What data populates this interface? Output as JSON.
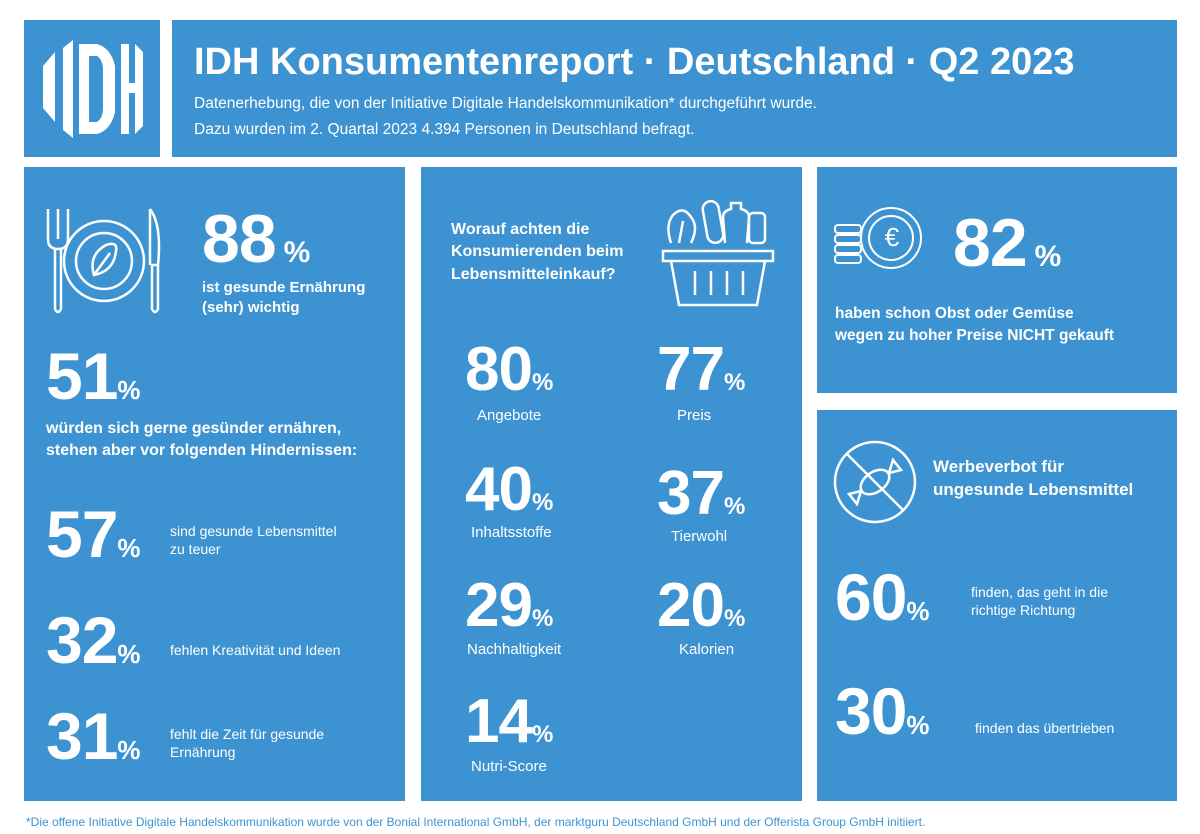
{
  "header": {
    "logo_text": "IDH",
    "title": "IDH Konsumentenreport · Deutschland · Q2 2023",
    "subtitle_line1": "Datenerhebung, die von der Initiative Digitale Handelskommunikation* durchgeführt wurde.",
    "subtitle_line2": "Dazu wurden im 2. Quartal 2023 4.394 Personen in Deutschland befragt."
  },
  "left": {
    "health": {
      "value": "88",
      "unit": "%",
      "text_line1": "ist gesunde Ernährung",
      "text_line2": "(sehr) wichtig"
    },
    "wish": {
      "value": "51",
      "unit": "%",
      "text_line1": "würden sich gerne gesünder ernähren,",
      "text_line2": "stehen aber vor folgenden Hindernissen:"
    },
    "obstacles": [
      {
        "value": "57",
        "unit": "%",
        "text_line1": "sind gesunde Lebensmittel",
        "text_line2": "zu teuer"
      },
      {
        "value": "32",
        "unit": "%",
        "text_line1": "fehlen Kreativität und Ideen",
        "text_line2": ""
      },
      {
        "value": "31",
        "unit": "%",
        "text_line1": "fehlt die Zeit für gesunde",
        "text_line2": "Ernährung"
      }
    ]
  },
  "middle": {
    "question_line1": "Worauf achten die",
    "question_line2": "Konsumierenden beim",
    "question_line3": "Lebensmitteleinkauf?",
    "items": [
      {
        "value": "80",
        "unit": "%",
        "label": "Angebote"
      },
      {
        "value": "77",
        "unit": "%",
        "label": "Preis"
      },
      {
        "value": "40",
        "unit": "%",
        "label": "Inhaltsstoffe"
      },
      {
        "value": "37",
        "unit": "%",
        "label": "Tierwohl"
      },
      {
        "value": "29",
        "unit": "%",
        "label": "Nachhaltigkeit"
      },
      {
        "value": "20",
        "unit": "%",
        "label": "Kalorien"
      },
      {
        "value": "14",
        "unit": "%",
        "label": "Nutri-Score"
      }
    ]
  },
  "right_top": {
    "value": "82",
    "unit": "%",
    "text_line1": "haben schon Obst oder Gemüse",
    "text_line2_before": "wegen zu hoher Preise ",
    "text_line2_strong": "NICHT",
    "text_line2_after": " gekauft",
    "coin_symbol": "€"
  },
  "right_bottom": {
    "title_line1": "Werbeverbot für",
    "title_line2": "ungesunde Lebensmittel",
    "items": [
      {
        "value": "60",
        "unit": "%",
        "text_line1": "finden, das geht in die",
        "text_line2": "richtige Richtung"
      },
      {
        "value": "30",
        "unit": "%",
        "text_line1": "finden das übertrieben",
        "text_line2": ""
      }
    ]
  },
  "footer": "*Die offene Initiative Digitale Handelskommunikation wurde von der Bonial International GmbH, der marktguru Deutschland GmbH und der Offerista Group GmbH initiiert.",
  "colors": {
    "panel": "#3d93d2",
    "text": "#ffffff",
    "background": "#ffffff"
  }
}
